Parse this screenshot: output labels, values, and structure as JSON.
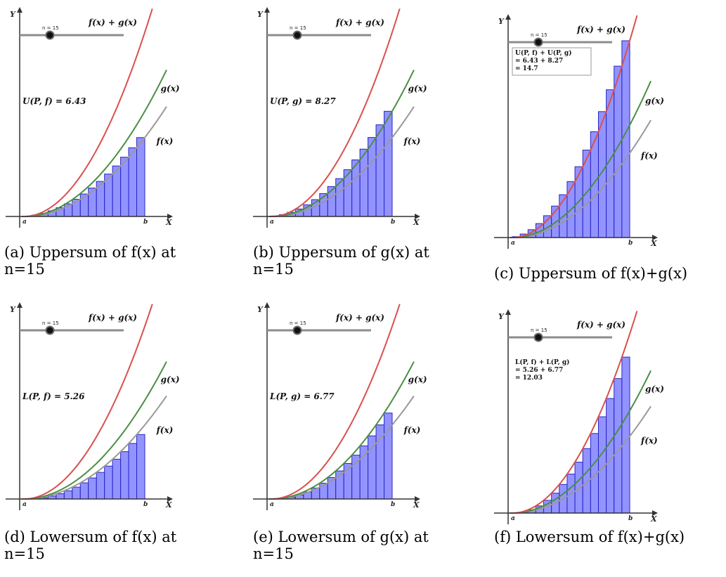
{
  "colors": {
    "f": "#999999",
    "g": "#4a8f44",
    "fg": "#d9504f",
    "bar_fill": "#8080ff",
    "bar_stroke": "#2626c4",
    "slider_track": "#8c8c8c"
  },
  "common": {
    "slider_label": "n = 15",
    "axis_x": "X",
    "axis_y": "Y",
    "point_a": "a",
    "point_b": "b",
    "label_f": "f(x)",
    "label_g": "g(x)",
    "label_fg": "f(x) + g(x)"
  },
  "panels": [
    {
      "id": "a",
      "annotation_lines": [
        "U(P, f) = 6.43"
      ],
      "caption_line1": "(a) Uppersum of f(x) at",
      "caption_line2": "n=15"
    },
    {
      "id": "b",
      "annotation_lines": [
        "U(P, g) = 8.27"
      ],
      "caption_line1": "(b) Uppersum of g(x) at",
      "caption_line2": "n=15"
    },
    {
      "id": "c",
      "annotation_lines": [
        "U(P, f) + U(P, g)",
        "= 6.43 + 8.27",
        "= 14.7"
      ],
      "caption_line1": "(c) Uppersum of f(x)+g(x)",
      "caption_line2": ""
    },
    {
      "id": "d",
      "annotation_lines": [
        "L(P, f) = 5.26"
      ],
      "caption_line1": "(d) Lowersum of f(x) at",
      "caption_line2": "n=15"
    },
    {
      "id": "e",
      "annotation_lines": [
        "L(P, g) = 6.77"
      ],
      "caption_line1": "(e) Lowersum of g(x) at",
      "caption_line2": "n=15"
    },
    {
      "id": "f",
      "annotation_lines": [
        "L(P, f) + L(P, g)",
        "= 5.26 + 6.77",
        "= 12.03"
      ],
      "caption_line1": "(f) Lowersum of f(x)+g(x)",
      "caption_line2": ""
    }
  ],
  "chart_data": [
    {
      "type": "bar",
      "title": "",
      "n": 15,
      "sum_kind": "upper",
      "function": "f",
      "curves": [
        "f(x)",
        "g(x)",
        "f(x) + g(x)"
      ],
      "relative_curve_heights": {
        "f": 0.6,
        "g": 0.8,
        "fg": 1.4
      },
      "value": 6.43
    },
    {
      "type": "bar",
      "title": "",
      "n": 15,
      "sum_kind": "upper",
      "function": "g",
      "curves": [
        "f(x)",
        "g(x)",
        "f(x) + g(x)"
      ],
      "relative_curve_heights": {
        "f": 0.6,
        "g": 0.8,
        "fg": 1.4
      },
      "value": 8.27
    },
    {
      "type": "bar",
      "title": "",
      "n": 15,
      "sum_kind": "upper",
      "function": "f+g",
      "curves": [
        "f(x)",
        "g(x)",
        "f(x) + g(x)"
      ],
      "relative_curve_heights": {
        "f": 0.6,
        "g": 0.8,
        "fg": 1.4
      },
      "value": 14.7
    },
    {
      "type": "bar",
      "title": "",
      "n": 15,
      "sum_kind": "lower",
      "function": "f",
      "curves": [
        "f(x)",
        "g(x)",
        "f(x) + g(x)"
      ],
      "relative_curve_heights": {
        "f": 0.6,
        "g": 0.8,
        "fg": 1.4
      },
      "value": 5.26
    },
    {
      "type": "bar",
      "title": "",
      "n": 15,
      "sum_kind": "lower",
      "function": "g",
      "curves": [
        "f(x)",
        "g(x)",
        "f(x) + g(x)"
      ],
      "relative_curve_heights": {
        "f": 0.6,
        "g": 0.8,
        "fg": 1.4
      },
      "value": 6.77
    },
    {
      "type": "bar",
      "title": "",
      "n": 15,
      "sum_kind": "lower",
      "function": "f+g",
      "curves": [
        "f(x)",
        "g(x)",
        "f(x) + g(x)"
      ],
      "relative_curve_heights": {
        "f": 0.6,
        "g": 0.8,
        "fg": 1.4
      },
      "value": 12.03
    }
  ]
}
